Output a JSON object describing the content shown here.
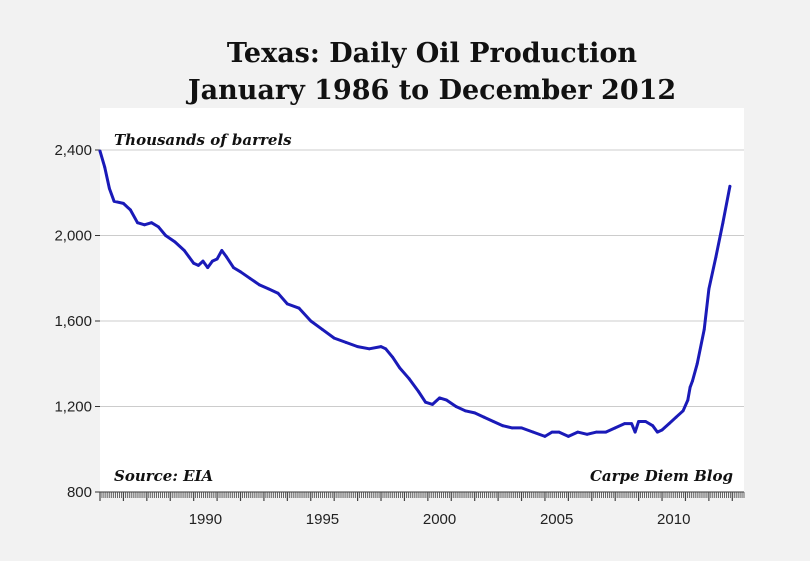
{
  "chart_data": {
    "type": "line",
    "title": "Texas: Daily Oil Production",
    "subtitle": "January 1986 to December 2012",
    "ylabel": "Thousands of barrels",
    "xlabel": "",
    "source_note": "Source: EIA",
    "credit_note": "Carpe Diem Blog",
    "xlim": [
      1986.0,
      2013.5
    ],
    "ylim": [
      800,
      2400
    ],
    "yticks": [
      800,
      1200,
      1600,
      2000,
      2400
    ],
    "ytick_labels": [
      "800",
      "1,200",
      "1,600",
      "2,000",
      "2,400"
    ],
    "xticks": [
      1990,
      1995,
      2000,
      2005,
      2010
    ],
    "xtick_labels": [
      "1990",
      "1995",
      "2000",
      "2005",
      "2010"
    ],
    "grid": true,
    "series": [
      {
        "name": "",
        "color": "#1a1ab8",
        "x": [
          1986.0,
          1986.2,
          1986.4,
          1986.6,
          1987.0,
          1987.3,
          1987.6,
          1987.9,
          1988.2,
          1988.5,
          1988.8,
          1989.2,
          1989.6,
          1989.8,
          1990.0,
          1990.2,
          1990.4,
          1990.6,
          1990.8,
          1991.0,
          1991.2,
          1991.4,
          1991.7,
          1992.0,
          1992.4,
          1992.8,
          1993.2,
          1993.6,
          1994.0,
          1994.5,
          1995.0,
          1995.5,
          1996.0,
          1996.5,
          1997.0,
          1997.5,
          1998.0,
          1998.2,
          1998.5,
          1998.8,
          1999.2,
          1999.6,
          1999.9,
          2000.2,
          2000.5,
          2000.8,
          2001.2,
          2001.6,
          2002.0,
          2002.4,
          2002.8,
          2003.2,
          2003.6,
          2004.0,
          2004.5,
          2005.0,
          2005.3,
          2005.6,
          2006.0,
          2006.4,
          2006.8,
          2007.2,
          2007.6,
          2008.0,
          2008.4,
          2008.7,
          2008.85,
          2009.0,
          2009.3,
          2009.6,
          2009.8,
          2010.0,
          2010.3,
          2010.6,
          2010.9,
          2011.1,
          2011.2,
          2011.3,
          2011.5,
          2011.8,
          2012.0,
          2012.3,
          2012.6,
          2012.9
        ],
        "values": [
          2395,
          2320,
          2220,
          2160,
          2150,
          2120,
          2060,
          2050,
          2060,
          2040,
          2000,
          1970,
          1930,
          1900,
          1870,
          1860,
          1880,
          1850,
          1880,
          1890,
          1930,
          1900,
          1850,
          1830,
          1800,
          1770,
          1750,
          1730,
          1680,
          1660,
          1600,
          1560,
          1520,
          1500,
          1480,
          1470,
          1480,
          1470,
          1430,
          1380,
          1330,
          1270,
          1220,
          1210,
          1240,
          1230,
          1200,
          1180,
          1170,
          1150,
          1130,
          1110,
          1100,
          1100,
          1080,
          1060,
          1080,
          1080,
          1060,
          1080,
          1070,
          1080,
          1080,
          1100,
          1120,
          1120,
          1080,
          1130,
          1130,
          1110,
          1080,
          1090,
          1120,
          1150,
          1180,
          1230,
          1290,
          1320,
          1400,
          1560,
          1750,
          1900,
          2060,
          2230
        ]
      }
    ]
  }
}
